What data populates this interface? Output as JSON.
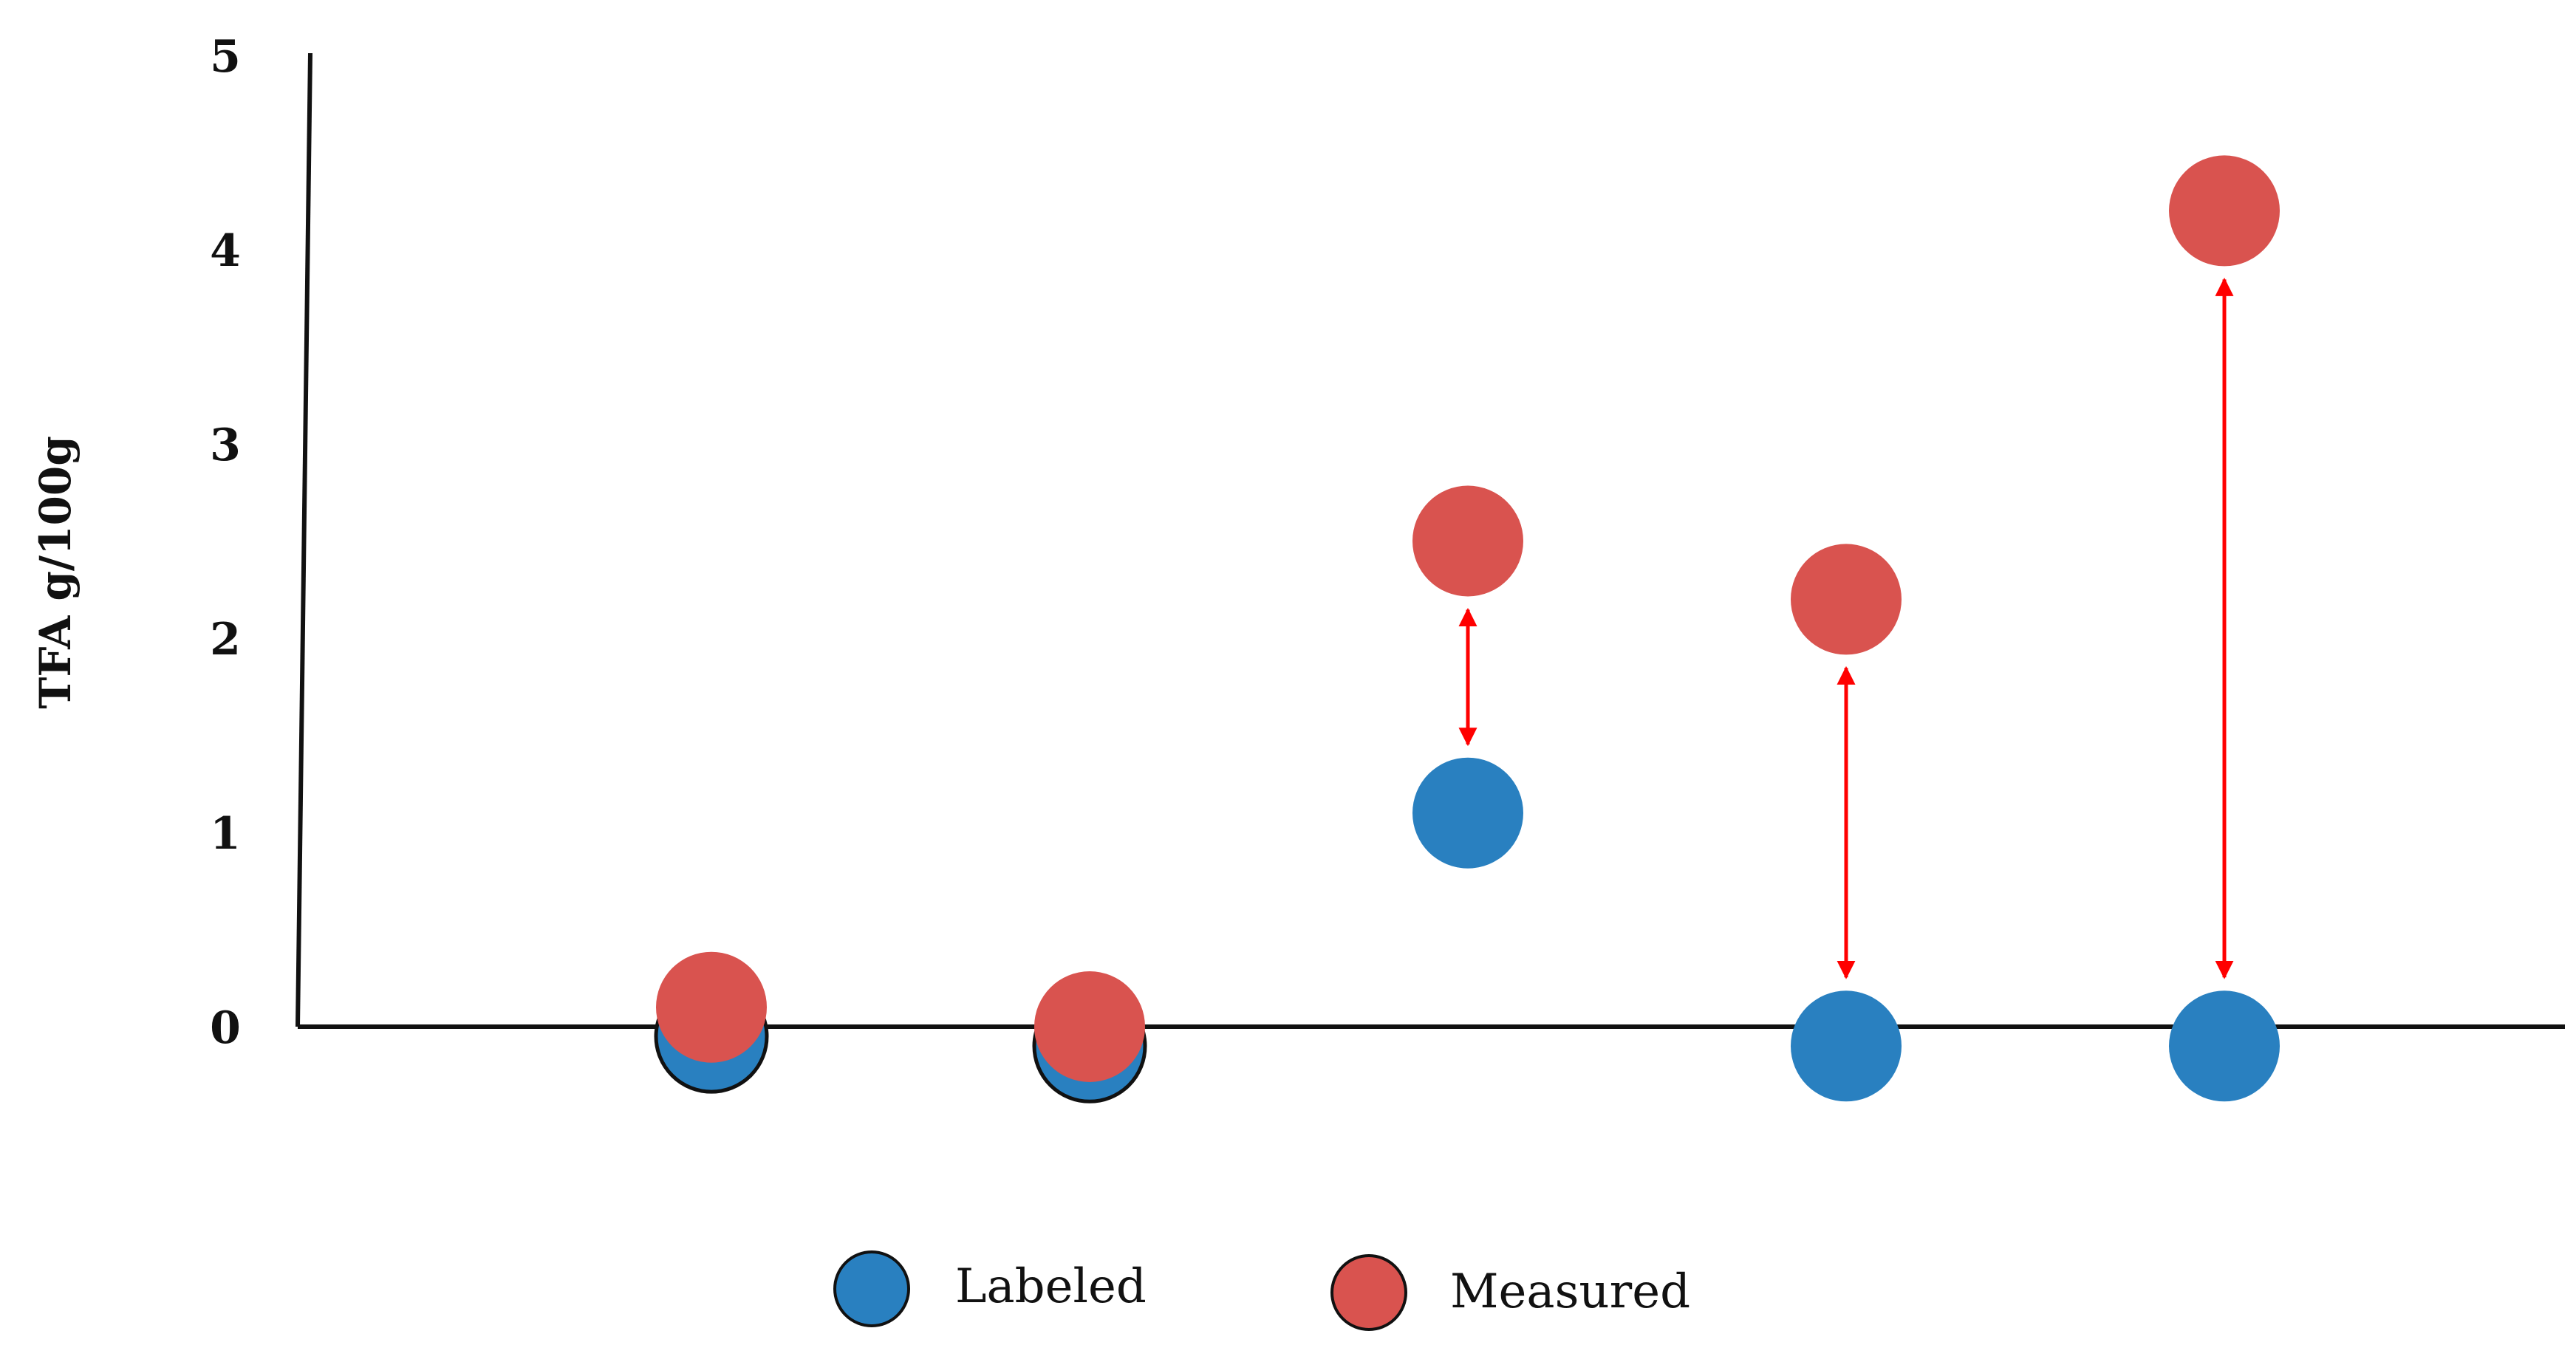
{
  "chart_data": {
    "type": "scatter",
    "title": "",
    "xlabel": "",
    "ylabel": "TFA g/100g",
    "ylim": [
      -0.5,
      5
    ],
    "yticks": [
      0,
      1,
      2,
      3,
      4,
      5
    ],
    "grid": false,
    "legend_position": "bottom",
    "x": [
      1,
      2,
      3,
      4,
      5
    ],
    "series": [
      {
        "name": "Labeled",
        "color": "#2980c0",
        "values": [
          0,
          0,
          1.1,
          0,
          0
        ],
        "outline": [
          true,
          true,
          false,
          false,
          false
        ],
        "draw_order": "back"
      },
      {
        "name": "Measured",
        "color": "#d9534f",
        "values": [
          0.1,
          0.0,
          2.5,
          2.2,
          4.2
        ],
        "outline": [
          false,
          false,
          false,
          false,
          false
        ],
        "draw_order": "front"
      }
    ],
    "difference_arrows": [
      {
        "x": 3,
        "from": 1.1,
        "to": 2.5
      },
      {
        "x": 4,
        "from": 0,
        "to": 2.2
      },
      {
        "x": 5,
        "from": 0,
        "to": 4.2
      }
    ],
    "arrow_color": "#ff0000"
  }
}
